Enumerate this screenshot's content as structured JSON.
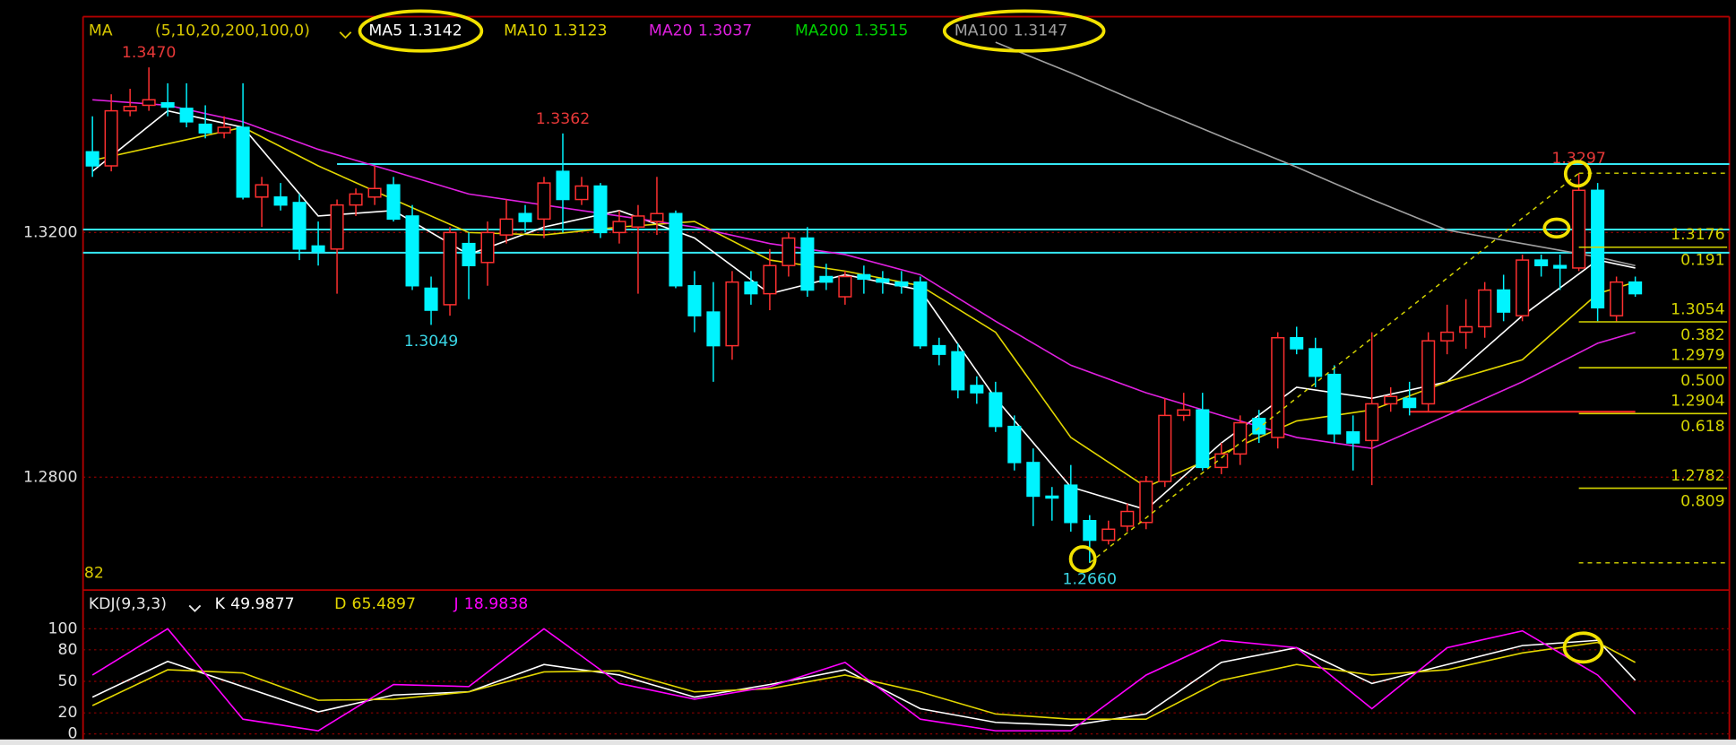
{
  "chart_data": [
    {
      "type": "candlestick",
      "legend_title": "MA",
      "legend_params": "(5,10,20,200,100,0)",
      "corner_label": "82",
      "xlim": [
        -0.5,
        87
      ],
      "ylim": [
        1.2621,
        1.3553
      ],
      "yticks": [
        {
          "value": 1.32,
          "label": "1.3200"
        },
        {
          "value": 1.28,
          "label": "1.2800"
        }
      ],
      "grid": true,
      "up_color": "#ff3030",
      "down_color": "#00f4ff",
      "open": [
        1.3332,
        1.3309,
        1.3399,
        1.3408,
        1.3412,
        1.3403,
        1.3377,
        1.3363,
        1.3372,
        1.3258,
        1.3258,
        1.3249,
        1.3178,
        1.3173,
        1.3245,
        1.3258,
        1.3278,
        1.3227,
        1.3109,
        1.3082,
        1.3182,
        1.3151,
        1.3196,
        1.3231,
        1.3222,
        1.33,
        1.3254,
        1.3276,
        1.32,
        1.3209,
        1.3218,
        1.3231,
        1.3113,
        1.307,
        1.3015,
        1.3119,
        1.31,
        1.3146,
        1.3191,
        1.3128,
        1.3095,
        1.3131,
        1.3124,
        1.3119,
        1.3119,
        1.3015,
        1.3005,
        1.295,
        1.2938,
        1.2883,
        1.2824,
        1.2769,
        1.2787,
        1.2729,
        1.2697,
        1.272,
        1.2726,
        1.2793,
        1.2901,
        1.291,
        1.2816,
        1.2838,
        1.2896,
        1.2865,
        1.3028,
        1.301,
        1.2968,
        1.2874,
        1.286,
        1.292,
        1.2929,
        1.292,
        1.3023,
        1.3037,
        1.3046,
        1.3106,
        1.3064,
        1.3155,
        1.3146,
        1.3142,
        1.3269,
        1.3064,
        1.3119
      ],
      "high": [
        1.339,
        1.3426,
        1.3435,
        1.347,
        1.3444,
        1.3444,
        1.3408,
        1.339,
        1.3444,
        1.3291,
        1.3281,
        1.3263,
        1.3218,
        1.3254,
        1.3272,
        1.3309,
        1.3291,
        1.3245,
        1.3128,
        1.3209,
        1.32,
        1.3218,
        1.3254,
        1.3245,
        1.3291,
        1.3362,
        1.3291,
        1.3281,
        1.3236,
        1.3245,
        1.3291,
        1.3236,
        1.3137,
        1.3119,
        1.3137,
        1.3137,
        1.3173,
        1.32,
        1.3209,
        1.3149,
        1.3137,
        1.3146,
        1.3137,
        1.3137,
        1.3128,
        1.3028,
        1.3019,
        1.2965,
        1.2956,
        1.2901,
        1.2847,
        1.2784,
        1.282,
        1.2738,
        1.2729,
        1.2757,
        1.2802,
        1.2929,
        1.2938,
        1.2938,
        1.2856,
        1.2901,
        1.291,
        1.3037,
        1.3046,
        1.3028,
        1.2983,
        1.2901,
        1.3037,
        1.2947,
        1.2956,
        1.3037,
        1.3082,
        1.3091,
        1.3119,
        1.3131,
        1.3164,
        1.3164,
        1.3164,
        1.3297,
        1.3281,
        1.3128,
        1.3128
      ],
      "low": [
        1.3291,
        1.33,
        1.339,
        1.3399,
        1.339,
        1.3372,
        1.3354,
        1.3354,
        1.3254,
        1.3209,
        1.3236,
        1.3155,
        1.3146,
        1.31,
        1.3227,
        1.3245,
        1.3218,
        1.3106,
        1.3049,
        1.3064,
        1.3091,
        1.3113,
        1.3182,
        1.32,
        1.3191,
        1.32,
        1.3245,
        1.3191,
        1.3182,
        1.31,
        1.3196,
        1.3109,
        1.3037,
        1.2956,
        1.2992,
        1.3082,
        1.3073,
        1.3128,
        1.3095,
        1.3106,
        1.3082,
        1.31,
        1.31,
        1.31,
        1.301,
        1.2983,
        1.2929,
        1.292,
        1.2874,
        1.2811,
        1.272,
        1.2729,
        1.2711,
        1.266,
        1.269,
        1.2711,
        1.2715,
        1.2784,
        1.2892,
        1.2811,
        1.2805,
        1.282,
        1.2856,
        1.2847,
        1.3001,
        1.2947,
        1.2856,
        1.2811,
        1.2787,
        1.2907,
        1.2901,
        1.2907,
        1.3001,
        1.301,
        1.3028,
        1.3055,
        1.3055,
        1.3128,
        1.3106,
        1.3137,
        1.3055,
        1.3055,
        1.3095
      ],
      "close": [
        1.3309,
        1.3399,
        1.3406,
        1.3417,
        1.3405,
        1.3381,
        1.3363,
        1.3372,
        1.3258,
        1.3278,
        1.3245,
        1.3173,
        1.3169,
        1.3245,
        1.3263,
        1.3272,
        1.3222,
        1.3113,
        1.3073,
        1.32,
        1.3146,
        1.32,
        1.3222,
        1.3218,
        1.3281,
        1.3254,
        1.3276,
        1.32,
        1.3218,
        1.3227,
        1.3231,
        1.3113,
        1.3064,
        1.3015,
        1.3119,
        1.31,
        1.3146,
        1.3191,
        1.3106,
        1.3119,
        1.3128,
        1.3124,
        1.3119,
        1.3113,
        1.3015,
        1.3001,
        1.2943,
        1.2938,
        1.2883,
        1.2824,
        1.2769,
        1.2766,
        1.2726,
        1.2697,
        1.2715,
        1.2744,
        1.2793,
        1.2901,
        1.291,
        1.2816,
        1.2838,
        1.2889,
        1.2871,
        1.3028,
        1.301,
        1.2965,
        1.2871,
        1.2856,
        1.292,
        1.2932,
        1.2914,
        1.3023,
        1.3037,
        1.3046,
        1.3106,
        1.307,
        1.3155,
        1.3146,
        1.3142,
        1.3269,
        1.3077,
        1.3119,
        1.31
      ],
      "series": [
        {
          "name": "MA5",
          "color": "#ffffff",
          "last": 1.3142,
          "x": [
            0,
            4,
            8,
            12,
            16,
            20,
            24,
            28,
            32,
            36,
            40,
            44,
            48,
            52,
            56,
            60,
            64,
            68,
            72,
            76,
            80,
            82
          ],
          "values": [
            1.33,
            1.3399,
            1.3372,
            1.3227,
            1.3236,
            1.3164,
            1.3209,
            1.3236,
            1.3191,
            1.31,
            1.3131,
            1.3106,
            1.2929,
            1.2784,
            1.2747,
            1.2856,
            1.2947,
            1.2929,
            1.2956,
            1.3064,
            1.3155,
            1.3142
          ]
        },
        {
          "name": "MA10",
          "color": "#e2d600",
          "last": 1.3123,
          "x": [
            0,
            4,
            8,
            12,
            16,
            20,
            24,
            28,
            32,
            36,
            40,
            44,
            48,
            52,
            56,
            60,
            64,
            68,
            72,
            76,
            80,
            82
          ],
          "values": [
            1.3318,
            1.3345,
            1.3372,
            1.3309,
            1.3254,
            1.32,
            1.3196,
            1.3209,
            1.3218,
            1.3155,
            1.3137,
            1.3113,
            1.3037,
            1.2865,
            1.2784,
            1.2838,
            1.2892,
            1.291,
            1.2956,
            1.2992,
            1.31,
            1.3119
          ]
        },
        {
          "name": "MA20",
          "color": "#e020e0",
          "last": 1.3037,
          "x": [
            0,
            4,
            8,
            12,
            16,
            20,
            24,
            28,
            32,
            36,
            40,
            44,
            48,
            52,
            56,
            60,
            64,
            68,
            72,
            76,
            80,
            82
          ],
          "values": [
            1.3417,
            1.3408,
            1.3381,
            1.3336,
            1.33,
            1.3263,
            1.3245,
            1.3227,
            1.3209,
            1.3182,
            1.3164,
            1.3131,
            1.3055,
            1.2983,
            1.2938,
            1.2901,
            1.2865,
            1.2847,
            1.2901,
            1.2956,
            1.3019,
            1.3037
          ]
        },
        {
          "name": "MA200",
          "color": "#00d000",
          "last": 1.3515
        },
        {
          "name": "MA100",
          "color": "#a0a0a0",
          "last": 1.3147,
          "x": [
            48,
            52,
            56,
            60,
            64,
            68,
            72,
            76,
            80,
            82
          ],
          "values": [
            1.3511,
            1.3461,
            1.3408,
            1.3357,
            1.3307,
            1.3254,
            1.3204,
            1.3182,
            1.316,
            1.3146
          ]
        }
      ],
      "horizontal_lines": [
        {
          "value": 1.3312,
          "x_start": 13,
          "color": "#35e8f5"
        },
        {
          "value": 1.3205,
          "color": "#35e8f5"
        },
        {
          "value": 1.3167,
          "color": "#35e8f5"
        },
        {
          "value": 1.2907,
          "x_start": 70,
          "x_end": 82,
          "color": "#ff2a2a"
        }
      ],
      "extremes": [
        {
          "x": 3,
          "value": 1.347,
          "label": "1.3470",
          "kind": "high"
        },
        {
          "x": 25,
          "value": 1.3362,
          "label": "1.3362",
          "kind": "high"
        },
        {
          "x": 18,
          "value": 1.3049,
          "label": "1.3049",
          "kind": "low"
        },
        {
          "x": 53,
          "value": 1.266,
          "label": "1.2660",
          "kind": "low"
        },
        {
          "x": 79,
          "value": 1.3297,
          "label": "1.3297",
          "kind": "high"
        }
      ],
      "fibonacci": {
        "color": "#d4d400",
        "x_start": 79,
        "levels": [
          {
            "price": 1.3176,
            "ratio": 0.191
          },
          {
            "price": 1.3054,
            "ratio": 0.382
          },
          {
            "price": 1.2979,
            "ratio": {
              "value": 0.5,
              "label": "0.500"
            }
          },
          {
            "price": 1.2904,
            "ratio": 0.618
          },
          {
            "price": 1.2782,
            "ratio": 0.809
          }
        ]
      }
    },
    {
      "type": "line",
      "title": "KDJ(9,3,3)",
      "xlim": [
        -0.5,
        87
      ],
      "ylim": [
        0,
        130
      ],
      "yticks": [
        0,
        20,
        50,
        80,
        100
      ],
      "grid": true,
      "x": [
        0,
        4,
        8,
        12,
        16,
        20,
        24,
        28,
        32,
        36,
        40,
        44,
        48,
        52,
        56,
        60,
        64,
        68,
        72,
        76,
        80,
        82
      ],
      "series": [
        {
          "name": "K",
          "color": "#ffffff",
          "last": 49.9877,
          "values": [
            35,
            69,
            45,
            21,
            37,
            40,
            66,
            56,
            35,
            47,
            61,
            24,
            11,
            8,
            19,
            68,
            82,
            48,
            66,
            84,
            89,
            51
          ]
        },
        {
          "name": "D",
          "color": "#e2d600",
          "last": 65.4897,
          "values": [
            27,
            61,
            58,
            32,
            33,
            40,
            59,
            60,
            40,
            43,
            56,
            40,
            19,
            14,
            14,
            51,
            66,
            56,
            61,
            77,
            87,
            68
          ]
        },
        {
          "name": "J",
          "color": "#ff00ff",
          "last": 18.9838,
          "values": [
            56,
            100,
            14,
            3,
            47,
            45,
            100,
            48,
            33,
            45,
            68,
            14,
            3,
            3,
            56,
            89,
            82,
            24,
            82,
            98,
            56,
            19
          ]
        }
      ]
    }
  ]
}
